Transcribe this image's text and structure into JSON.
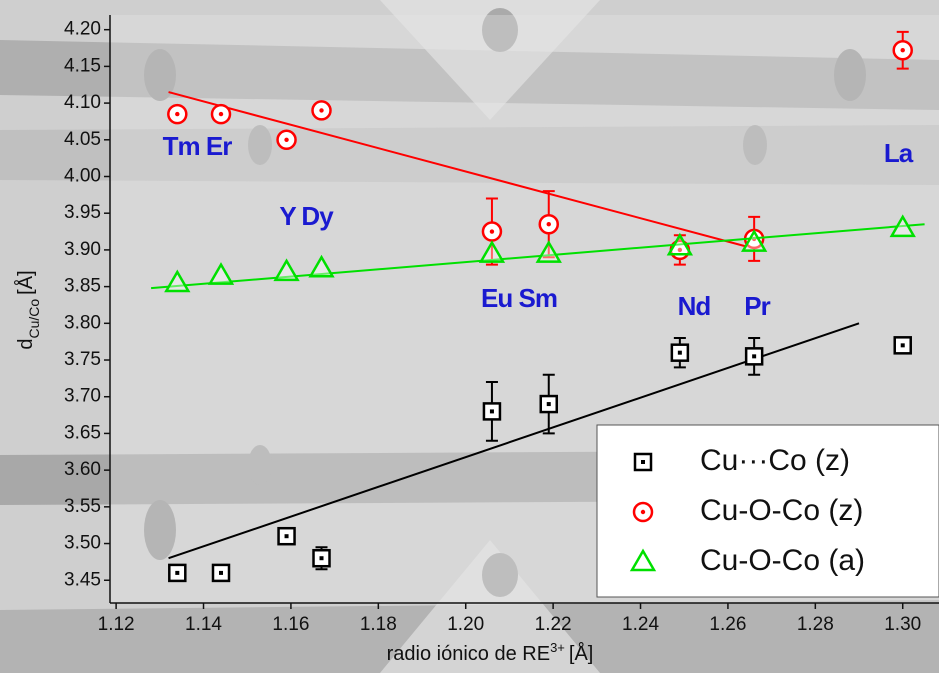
{
  "chart_data": {
    "type": "scatter",
    "xlabel": "radio iónico de RE",
    "xlabel_sup": "3+",
    "xlabel_unit": "[Å]",
    "ylabel": "d",
    "ylabel_sub": "Cu/Co",
    "ylabel_unit": "[Å]",
    "xlim": [
      1.1186,
      1.3083
    ],
    "ylim": [
      3.419,
      4.22
    ],
    "xticks": [
      1.12,
      1.14,
      1.16,
      1.18,
      {
        "value": 1.2,
        "label": "1.20"
      },
      1.22,
      1.24,
      1.26,
      1.28,
      {
        "value": 1.3,
        "label": "1.30"
      }
    ],
    "yticks": [
      3.45,
      {
        "value": 3.5,
        "label": "3.50"
      },
      3.55,
      {
        "value": 3.6,
        "label": "3.60"
      },
      3.65,
      {
        "value": 3.7,
        "label": "3.70"
      },
      3.75,
      {
        "value": 3.8,
        "label": "3.80"
      },
      3.85,
      {
        "value": 3.9,
        "label": "3.90"
      },
      3.95,
      {
        "value": 4,
        "label": "4.00"
      },
      4.05,
      {
        "value": 4.1,
        "label": "4.10"
      },
      4.15,
      {
        "value": 4.2,
        "label": "4.20"
      }
    ],
    "x": [
      1.134,
      1.144,
      1.159,
      1.167,
      1.206,
      1.219,
      1.249,
      1.266,
      1.3
    ],
    "series": [
      {
        "name": "Cu···Co (z)",
        "color": "#000000",
        "marker": "square",
        "values": [
          3.46,
          3.46,
          3.51,
          3.48,
          3.68,
          3.69,
          3.76,
          3.755,
          3.77
        ],
        "errors": [
          null,
          null,
          0.01,
          0.015,
          0.04,
          0.04,
          0.02,
          0.025,
          null
        ],
        "trend_x": [
          1.132,
          1.29
        ],
        "trend_y": [
          3.48,
          3.8
        ]
      },
      {
        "name": "Cu-O-Co (z)",
        "color": "#ff0000",
        "marker": "circle",
        "values": [
          4.085,
          4.085,
          4.05,
          4.09,
          3.925,
          3.935,
          3.9,
          3.915,
          4.172
        ],
        "errors": [
          null,
          null,
          null,
          null,
          0.045,
          0.045,
          0.02,
          0.03,
          0.025
        ],
        "trend_x": [
          1.132,
          1.264
        ],
        "trend_y": [
          4.115,
          3.905
        ]
      },
      {
        "name": "Cu-O-Co (a)",
        "color": "#00e000",
        "marker": "triangle",
        "values": [
          3.855,
          3.865,
          3.87,
          3.875,
          3.895,
          3.895,
          3.905,
          3.91,
          3.93
        ],
        "errors": [
          null,
          null,
          null,
          null,
          null,
          null,
          null,
          null,
          null
        ],
        "trend_x": [
          1.128,
          1.305
        ],
        "trend_y": [
          3.848,
          3.935
        ]
      }
    ],
    "annotations": [
      "Tm Er",
      "Y Dy",
      "Eu Sm",
      "Nd",
      "Pr",
      "La"
    ]
  }
}
